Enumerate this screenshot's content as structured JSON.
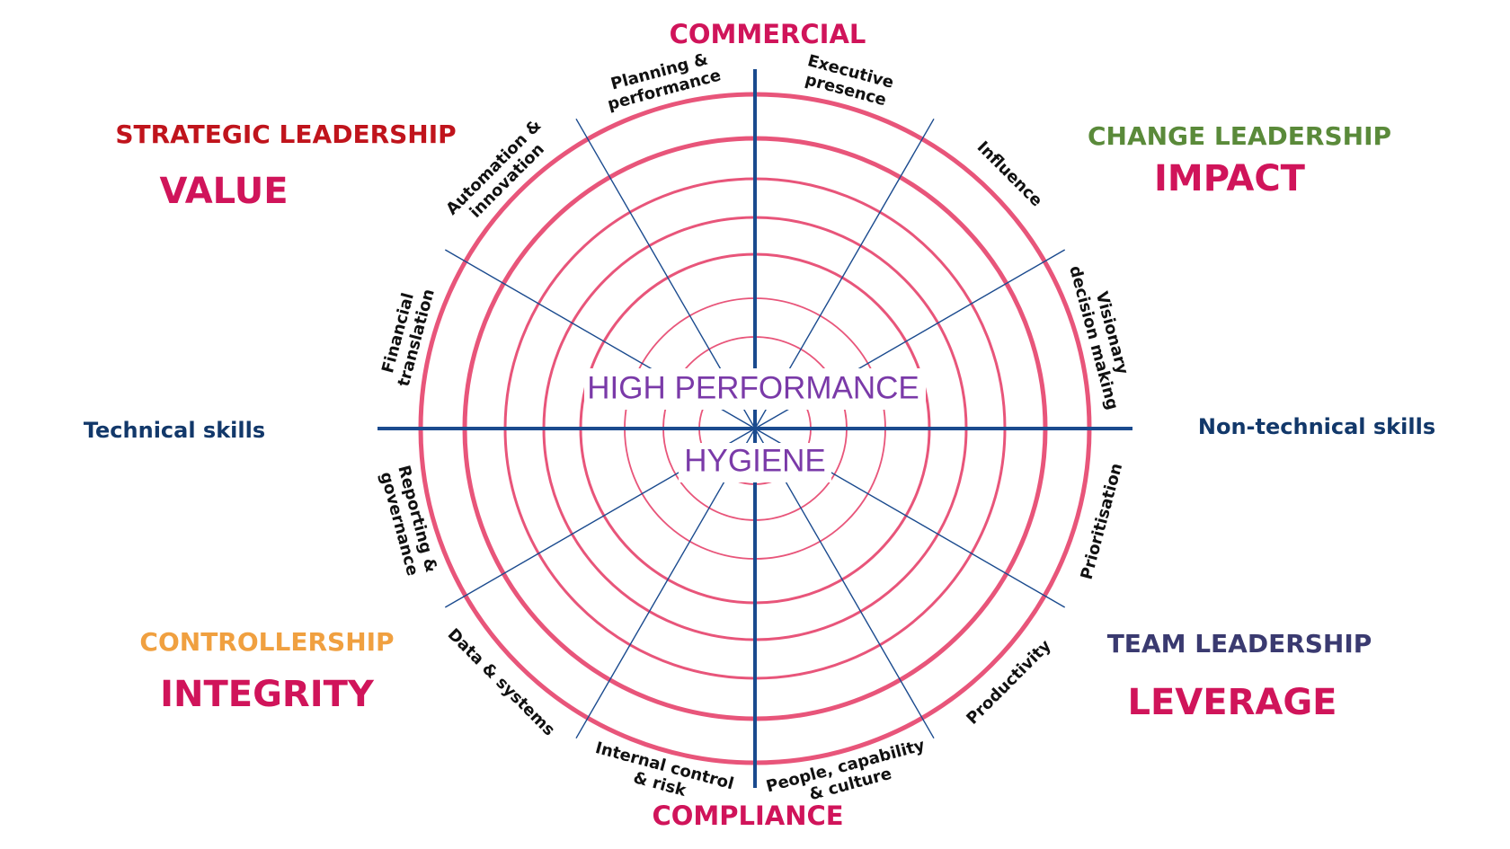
{
  "poles": {
    "top": "COMMERCIAL",
    "bottom": "COMPLIANCE"
  },
  "axis": {
    "left": "Technical skills",
    "right": "Non-technical skills"
  },
  "center": {
    "upper": "HIGH PERFORMANCE",
    "lower": "HYGIENE"
  },
  "quadrants": [
    {
      "title": "STRATEGIC LEADERSHIP",
      "subtitle": "VALUE"
    },
    {
      "title": "CHANGE LEADERSHIP",
      "subtitle": "IMPACT"
    },
    {
      "title": "CONTROLLERSHIP",
      "subtitle": "INTEGRITY"
    },
    {
      "title": "TEAM LEADERSHIP",
      "subtitle": "LEVERAGE"
    }
  ],
  "segments": [
    {
      "lines": [
        "Executive",
        "presence"
      ]
    },
    {
      "lines": [
        "Influence"
      ]
    },
    {
      "lines": [
        "Visionary",
        "decision making"
      ]
    },
    {
      "lines": [
        "Prioritisation"
      ]
    },
    {
      "lines": [
        "Productivity"
      ]
    },
    {
      "lines": [
        "People, capability",
        "& culture"
      ]
    },
    {
      "lines": [
        "Internal control",
        "& risk"
      ]
    },
    {
      "lines": [
        "Data & systems"
      ]
    },
    {
      "lines": [
        "Reporting &",
        "governance"
      ]
    },
    {
      "lines": [
        "Financial",
        "translation"
      ]
    },
    {
      "lines": [
        "Automation &",
        "innovation"
      ]
    },
    {
      "lines": [
        "Planning &",
        "performance"
      ]
    }
  ]
}
